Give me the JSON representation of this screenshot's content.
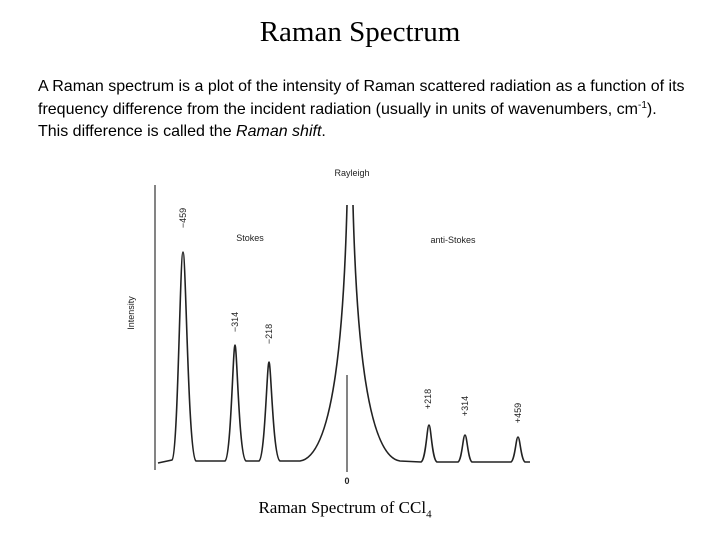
{
  "title": "Raman Spectrum",
  "paragraph": {
    "text_1": "A Raman spectrum is a plot of the intensity of Raman scattered radiation as a function of its frequency difference from the incident radiation (usually in units of wavenumbers, cm",
    "superscript": "-1",
    "text_2": "). This difference is called the ",
    "emphasis": "Raman shift",
    "text_3": "."
  },
  "figure": {
    "rayleigh": "Rayleigh",
    "stokes": "Stokes",
    "anti_stokes": "anti-Stokes",
    "y_axis_label": "Intensity",
    "origin_label": "0",
    "peak_labels": [
      "−459",
      "−314",
      "−218",
      "+218",
      "+314",
      "+459"
    ]
  },
  "caption": {
    "text": "Raman Spectrum of CCl",
    "subscript": "4"
  }
}
